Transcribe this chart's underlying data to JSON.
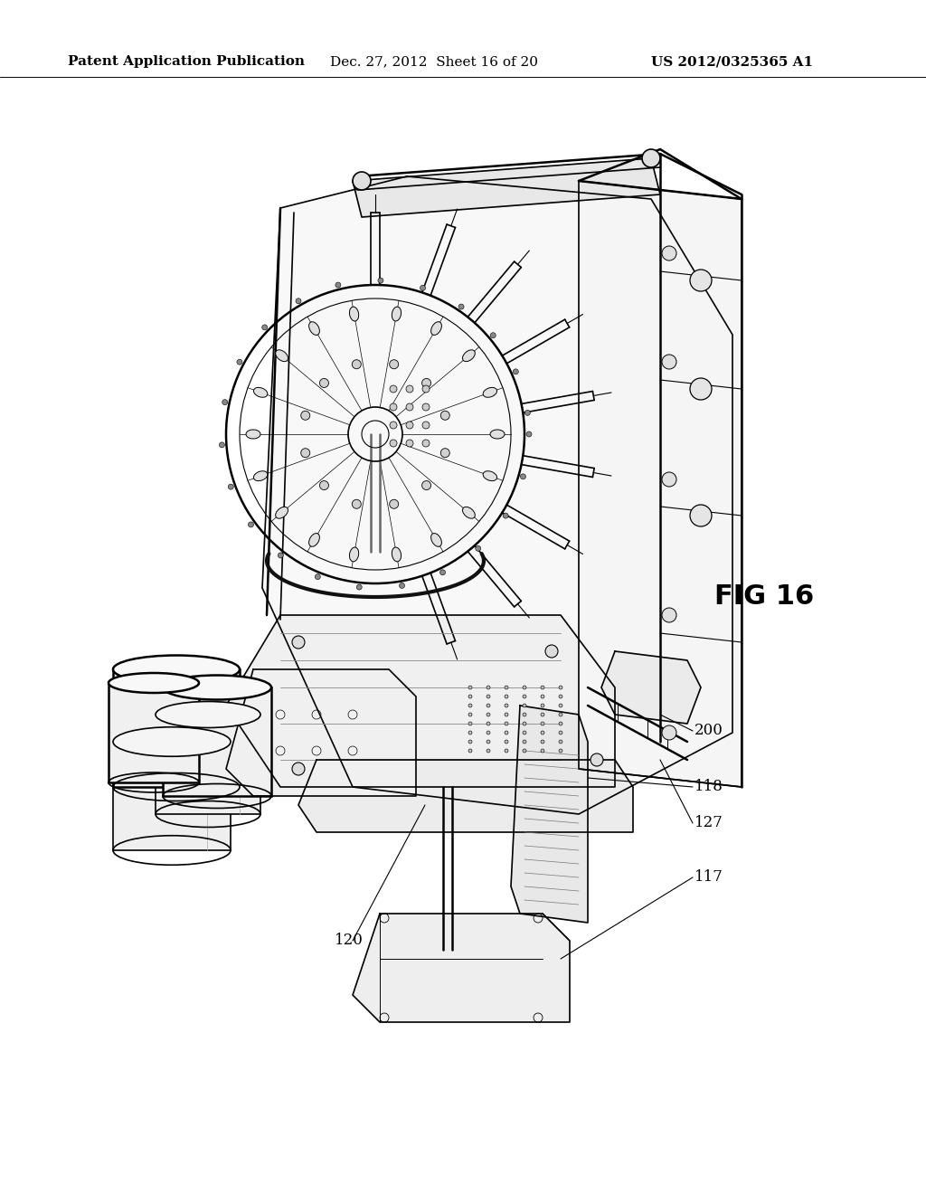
{
  "header_left": "Patent Application Publication",
  "header_mid": "Dec. 27, 2012  Sheet 16 of 20",
  "header_right": "US 2012/0325365 A1",
  "fig_label": "FIG 16",
  "ref_numbers": [
    "200",
    "118",
    "127",
    "117",
    "120"
  ],
  "background_color": "#ffffff",
  "line_color": "#000000",
  "header_fontsize": 11,
  "fig_label_fontsize": 22,
  "ref_fontsize": 12
}
